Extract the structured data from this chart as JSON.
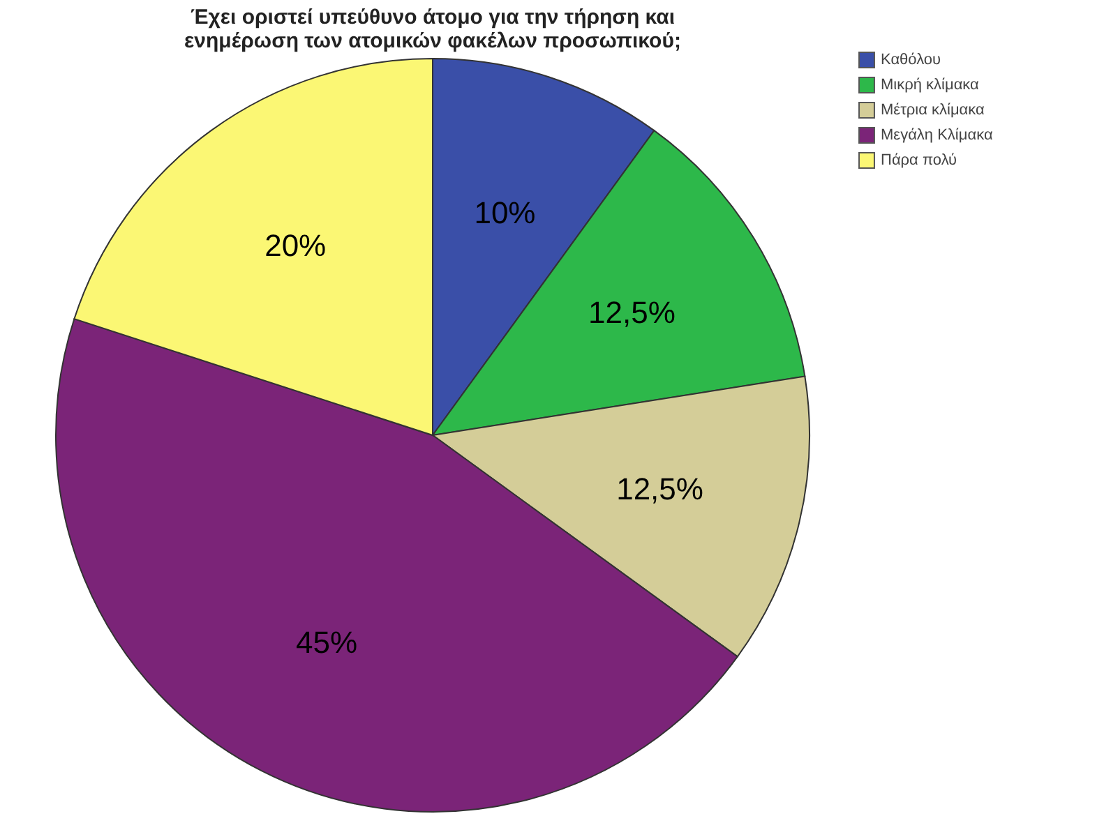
{
  "chart_data": {
    "type": "pie",
    "title": "Έχει οριστεί υπεύθυνο άτομο για την τήρηση και ενημέρωση των ατομικών φακέλων προσωπικού;",
    "categories": [
      "Καθόλου",
      "Μικρή κλίμακα",
      "Μέτρια κλίμακα",
      "Μεγάλη Κλίμακα",
      "Πάρα πολύ"
    ],
    "values": [
      10,
      12.5,
      12.5,
      45,
      20
    ],
    "value_labels": [
      "10%",
      "12,5%",
      "12,5%",
      "45%",
      "20%"
    ],
    "colors": [
      "#3a4fa8",
      "#2db84a",
      "#d4cd98",
      "#7b2478",
      "#fbf774"
    ],
    "legend": "top right"
  }
}
